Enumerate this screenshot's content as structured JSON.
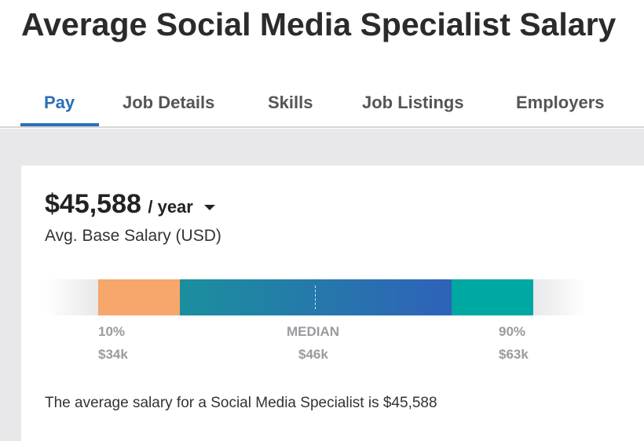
{
  "page": {
    "title": "Average Social Media Specialist Salary"
  },
  "tabs": [
    {
      "label": "Pay",
      "active": true
    },
    {
      "label": "Job Details",
      "active": false
    },
    {
      "label": "Skills",
      "active": false
    },
    {
      "label": "Job Listings",
      "active": false
    },
    {
      "label": "Employers",
      "active": false
    }
  ],
  "salary": {
    "amount": "$45,588",
    "period": "/ year",
    "label": "Avg. Base Salary (USD)",
    "period_dropdown_icon": "caret-down-icon"
  },
  "range": {
    "p10_label": "10%",
    "p10_value": "$34k",
    "median_label": "MEDIAN",
    "median_value": "$46k",
    "p90_label": "90%",
    "p90_value": "$63k"
  },
  "summary": "The average salary for a Social Media Specialist is $45,588",
  "colors": {
    "accent": "#2a6fb7",
    "bar_low": "#f7a66c",
    "bar_mid_start": "#1b8f9e",
    "bar_mid_end": "#2f62b8",
    "bar_high": "#00a8a3",
    "background_band": "#e8e8ea"
  }
}
